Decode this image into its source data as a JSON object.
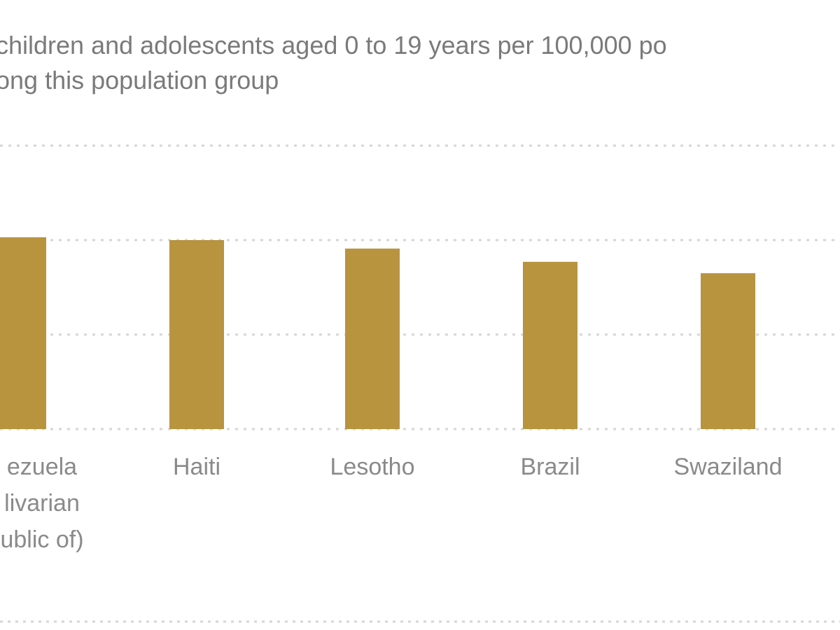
{
  "subtitle": {
    "line1": "children and adolescents aged 0 to 19 years per 100,000 po",
    "line2": "ong this population group"
  },
  "colors": {
    "bar": "#b8943f",
    "grid": "#d6d6d6",
    "text": "#7a7a7a"
  },
  "chart_data": {
    "type": "bar",
    "title": "",
    "xlabel": "",
    "ylabel": "",
    "categories": [
      [
        "ezuela",
        "livarian",
        "ublic of)"
      ],
      [
        "Haiti"
      ],
      [
        "Lesotho"
      ],
      [
        "Brazil"
      ],
      [
        "Swaziland"
      ]
    ],
    "values": [
      2.03,
      2.0,
      1.91,
      1.77,
      1.65
    ],
    "ylim": [
      0,
      3
    ],
    "grid": true,
    "legend": "none"
  }
}
